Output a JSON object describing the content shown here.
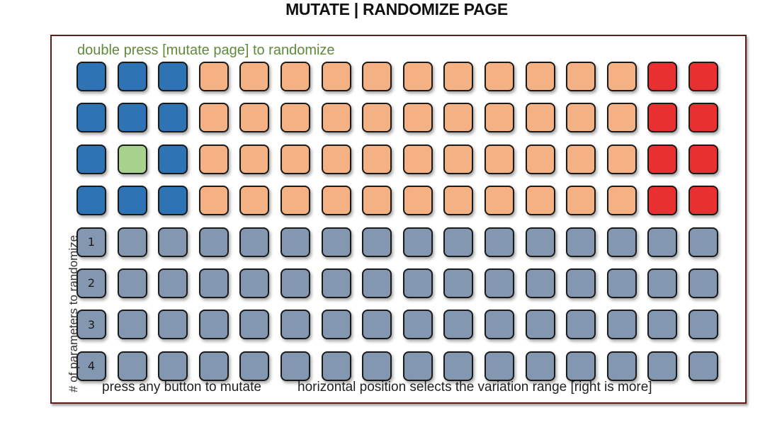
{
  "title": "MUTATE | RANDOMIZE PAGE",
  "top_instruction": "double press [mutate page] to randomize",
  "side_label": "# of parameters to randomize",
  "bottom_left": "press any button to mutate",
  "bottom_right": "horizontal position selects the variation range [right is more]",
  "colors": {
    "blue": "#2e74b5",
    "orange": "#f4b183",
    "red": "#e83030",
    "green": "#a9d18e",
    "gray": "#8497b0",
    "frame": "#5b1f18",
    "instruction": "#5f8a3a"
  },
  "grid": {
    "rows": [
      [
        "blue",
        "blue",
        "blue",
        "orange",
        "orange",
        "orange",
        "orange",
        "orange",
        "orange",
        "orange",
        "orange",
        "orange",
        "orange",
        "orange",
        "red",
        "red"
      ],
      [
        "blue",
        "blue",
        "blue",
        "orange",
        "orange",
        "orange",
        "orange",
        "orange",
        "orange",
        "orange",
        "orange",
        "orange",
        "orange",
        "orange",
        "red",
        "red"
      ],
      [
        "blue",
        "green",
        "blue",
        "orange",
        "orange",
        "orange",
        "orange",
        "orange",
        "orange",
        "orange",
        "orange",
        "orange",
        "orange",
        "orange",
        "red",
        "red"
      ],
      [
        "blue",
        "blue",
        "blue",
        "orange",
        "orange",
        "orange",
        "orange",
        "orange",
        "orange",
        "orange",
        "orange",
        "orange",
        "orange",
        "orange",
        "red",
        "red"
      ],
      [
        "gray",
        "gray",
        "gray",
        "gray",
        "gray",
        "gray",
        "gray",
        "gray",
        "gray",
        "gray",
        "gray",
        "gray",
        "gray",
        "gray",
        "gray",
        "gray"
      ],
      [
        "gray",
        "gray",
        "gray",
        "gray",
        "gray",
        "gray",
        "gray",
        "gray",
        "gray",
        "gray",
        "gray",
        "gray",
        "gray",
        "gray",
        "gray",
        "gray"
      ],
      [
        "gray",
        "gray",
        "gray",
        "gray",
        "gray",
        "gray",
        "gray",
        "gray",
        "gray",
        "gray",
        "gray",
        "gray",
        "gray",
        "gray",
        "gray",
        "gray"
      ],
      [
        "gray",
        "gray",
        "gray",
        "gray",
        "gray",
        "gray",
        "gray",
        "gray",
        "gray",
        "gray",
        "gray",
        "gray",
        "gray",
        "gray",
        "gray",
        "gray"
      ]
    ],
    "row_labels": [
      "",
      "",
      "",
      "",
      "1",
      "2",
      "3",
      "4"
    ]
  }
}
